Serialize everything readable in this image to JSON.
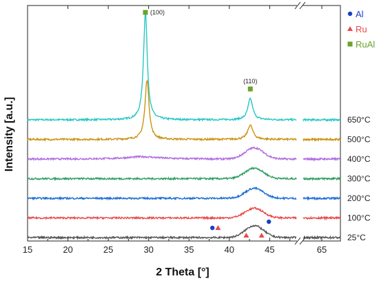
{
  "chart_data": {
    "type": "line",
    "xlabel": "2 Theta [°]",
    "ylabel": "Intensity [a.u.]",
    "xlim": [
      15,
      68
    ],
    "axis_break": [
      50,
      62
    ],
    "x_ticks": [
      15,
      20,
      25,
      30,
      35,
      40,
      45,
      65
    ],
    "series": [
      {
        "name": "650°C",
        "color": "#27c6c6",
        "offset": 6,
        "peaks": [
          {
            "x": 29.6,
            "h": 5.6,
            "w": 0.28
          },
          {
            "x": 42.6,
            "h": 1.1,
            "w": 0.35
          }
        ],
        "hump": 0.0
      },
      {
        "name": "500°C",
        "color": "#c99312",
        "offset": 5,
        "peaks": [
          {
            "x": 29.8,
            "h": 3.1,
            "w": 0.3
          },
          {
            "x": 42.6,
            "h": 0.75,
            "w": 0.38
          }
        ],
        "hump": 0.0
      },
      {
        "name": "400°C",
        "color": "#b06be0",
        "offset": 4,
        "peaks": [
          {
            "x": 29.2,
            "h": 0.12,
            "w": 2.5
          }
        ],
        "hump": 0.58
      },
      {
        "name": "300°C",
        "color": "#2f9e63",
        "offset": 3,
        "peaks": [],
        "hump": 0.55
      },
      {
        "name": "200°C",
        "color": "#1f6fd6",
        "offset": 2,
        "peaks": [],
        "hump": 0.52
      },
      {
        "name": "100°C",
        "color": "#e94b4b",
        "offset": 1,
        "peaks": [],
        "hump": 0.5
      },
      {
        "name": "25°C",
        "color": "#555555",
        "offset": 0,
        "peaks": [],
        "hump": 0.62
      }
    ],
    "peak_labels": [
      {
        "text": "(100)",
        "x": 29.6
      },
      {
        "text": "(110)",
        "x": 42.6
      }
    ],
    "markers_25C": [
      {
        "type": "Al",
        "x": 37.9
      },
      {
        "type": "Ru",
        "x": 38.6
      },
      {
        "type": "Ru",
        "x": 42.1
      },
      {
        "type": "Ru",
        "x": 44.0
      },
      {
        "type": "Al",
        "x": 44.9
      }
    ],
    "legend": [
      {
        "label": "Al",
        "color": "#1b3fc4",
        "shape": "circle"
      },
      {
        "label": "Ru",
        "color": "#e94b4b",
        "shape": "triangle"
      },
      {
        "label": "RuAl",
        "color": "#6aa32a",
        "shape": "square"
      }
    ],
    "ruAl_marker_color": "#6aa32a"
  }
}
